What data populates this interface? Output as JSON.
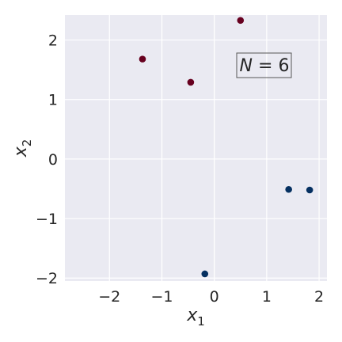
{
  "chart_data": {
    "type": "scatter",
    "title": "",
    "xlabel": "x",
    "xlabel_sub": "1",
    "ylabel": "x",
    "ylabel_sub": "2",
    "xlim": [
      -2.85,
      2.15
    ],
    "ylim": [
      -2.05,
      2.42
    ],
    "xticks": [
      -2,
      -1,
      0,
      1,
      2
    ],
    "yticks": [
      -2,
      -1,
      0,
      1,
      2
    ],
    "xtick_labels": [
      "−2",
      "−1",
      "0",
      "1",
      "2"
    ],
    "ytick_labels": [
      "−2",
      "−1",
      "0",
      "1",
      "2"
    ],
    "grid": true,
    "background_color": "#eaeaf2",
    "grid_color": "#ffffff",
    "annotation": {
      "var": "N",
      "eq": " = ",
      "value": "6"
    },
    "series": [
      {
        "color": "#67001f",
        "points": [
          {
            "x": -1.37,
            "y": 1.68
          },
          {
            "x": -0.45,
            "y": 1.29
          },
          {
            "x": 0.5,
            "y": 2.33
          }
        ]
      },
      {
        "color": "#053061",
        "points": [
          {
            "x": 1.42,
            "y": -0.51
          },
          {
            "x": 1.82,
            "y": -0.52
          },
          {
            "x": -0.18,
            "y": -1.93
          }
        ]
      }
    ]
  }
}
